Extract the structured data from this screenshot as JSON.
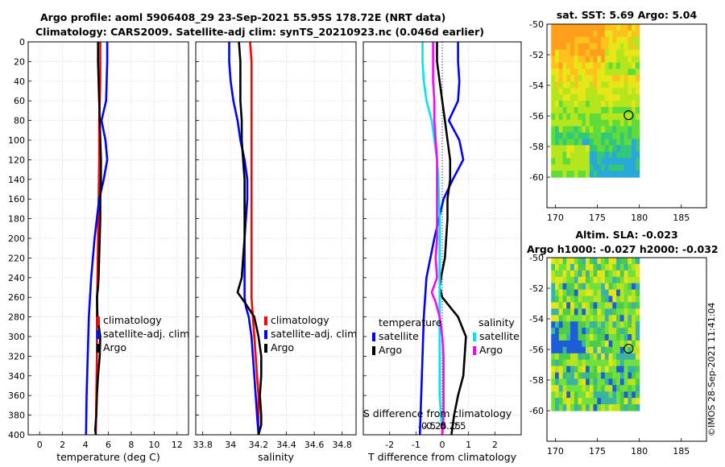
{
  "header": {
    "line1": "Argo profile: aoml 5906408_29 23-Sep-2021 55.95S 178.72E (NRT data)",
    "line2": "Climatology: CARS2009. Satellite-adj clim: synTS_20210923.nc (0.046d earlier)"
  },
  "credit": "©IMOS 28-Sep-2021 11:41:04",
  "colors": {
    "argo": "#000000",
    "climatology": "#ff0000",
    "satellite_clim": "#0000ff",
    "salinity_satellite": "#00e5ee",
    "salinity_argo": "#ff00ff"
  },
  "chart_data": [
    {
      "id": "temperature_panel",
      "type": "line",
      "xlabel": "temperature (deg C)",
      "xlim": [
        -1,
        13
      ],
      "xticks": [
        0,
        2,
        4,
        6,
        8,
        10,
        12
      ],
      "ylim": [
        0,
        400
      ],
      "yticks": [
        0,
        20,
        40,
        60,
        80,
        100,
        120,
        140,
        160,
        180,
        200,
        220,
        240,
        260,
        280,
        300,
        320,
        340,
        360,
        380,
        400
      ],
      "legend": {
        "placement": "center-right",
        "entries": [
          "climatology",
          "satellite-adj. clim",
          "Argo"
        ]
      },
      "series": [
        {
          "name": "climatology",
          "x": [
            5.3,
            5.3,
            5.2,
            5.2,
            5.15,
            5.1,
            5.05,
            5.0,
            5.0,
            4.95,
            4.9
          ],
          "y": [
            0,
            40,
            80,
            120,
            160,
            200,
            240,
            280,
            320,
            360,
            400
          ]
        },
        {
          "name": "satellite-adj. clim",
          "x": [
            5.9,
            5.9,
            5.85,
            5.8,
            5.4,
            5.75,
            5.9,
            5.6,
            5.2,
            4.8,
            4.5,
            4.3,
            4.2,
            4.1,
            4.05
          ],
          "y": [
            0,
            20,
            40,
            60,
            80,
            100,
            120,
            140,
            160,
            200,
            240,
            280,
            320,
            360,
            400
          ]
        },
        {
          "name": "Argo",
          "x": [
            5.1,
            5.1,
            5.15,
            5.2,
            5.25,
            5.3,
            5.35,
            5.35,
            5.3,
            5.3,
            5.25,
            5.2,
            5.15,
            5.1,
            5.0,
            5.05,
            5.3,
            5.25,
            5.1,
            5.0,
            4.95,
            4.85,
            4.9
          ],
          "y": [
            0,
            20,
            40,
            60,
            80,
            100,
            120,
            140,
            160,
            180,
            200,
            220,
            240,
            250,
            260,
            280,
            300,
            320,
            340,
            360,
            380,
            395,
            400
          ]
        }
      ]
    },
    {
      "id": "salinity_panel",
      "type": "line",
      "xlabel": "salinity",
      "xlim": [
        33.75,
        34.9
      ],
      "xticks": [
        33.8,
        34,
        34.2,
        34.4,
        34.6,
        34.8
      ],
      "ylim": [
        0,
        400
      ],
      "legend": {
        "placement": "center-right",
        "entries": [
          "climatology",
          "satellite-adj. clim",
          "Argo"
        ]
      },
      "series": [
        {
          "name": "climatology",
          "x": [
            34.14,
            34.15,
            34.15,
            34.15,
            34.15,
            34.15,
            34.15,
            34.15,
            34.15,
            34.16,
            34.17,
            34.18,
            34.19,
            34.2,
            34.2,
            34.2
          ],
          "y": [
            0,
            20,
            60,
            100,
            140,
            180,
            220,
            240,
            260,
            280,
            300,
            320,
            340,
            360,
            380,
            400
          ]
        },
        {
          "name": "satellite-adj. clim",
          "x": [
            33.99,
            33.99,
            34.0,
            34.02,
            34.05,
            34.07,
            34.1,
            34.12,
            34.12,
            34.11,
            34.1,
            34.1,
            34.1,
            34.1,
            34.11,
            34.13,
            34.15,
            34.16,
            34.17,
            34.18,
            34.19,
            34.2
          ],
          "y": [
            0,
            20,
            40,
            60,
            80,
            100,
            120,
            140,
            160,
            180,
            200,
            220,
            240,
            260,
            270,
            280,
            300,
            320,
            340,
            360,
            380,
            400
          ]
        },
        {
          "name": "Argo",
          "x": [
            34.06,
            34.07,
            34.07,
            34.07,
            34.08,
            34.08,
            34.09,
            34.1,
            34.1,
            34.1,
            34.1,
            34.09,
            34.08,
            34.05,
            34.1,
            34.17,
            34.2,
            34.22,
            34.22,
            34.21,
            34.22,
            34.22,
            34.2
          ],
          "y": [
            0,
            20,
            40,
            60,
            80,
            100,
            120,
            140,
            160,
            180,
            200,
            220,
            240,
            255,
            265,
            280,
            300,
            320,
            340,
            360,
            380,
            390,
            400
          ]
        }
      ]
    },
    {
      "id": "difference_panel",
      "type": "line",
      "xlabel": "T difference from climatology",
      "xlim": [
        -3,
        3
      ],
      "xticks": [
        -2,
        -1,
        0,
        1,
        2
      ],
      "ylim": [
        0,
        400
      ],
      "top_axis": {
        "label": "S difference from climatology",
        "ticks": [
          "-0.5",
          "-0.25",
          "0",
          "0.25",
          "0.5"
        ]
      },
      "legend_left": {
        "title": "temperature",
        "entries": [
          "satellite",
          "Argo"
        ]
      },
      "legend_right": {
        "title": "salinity",
        "entries": [
          "satellite",
          "Argo"
        ]
      },
      "series": [
        {
          "name": "temperature satellite",
          "x": [
            0.6,
            0.6,
            0.65,
            0.6,
            0.25,
            0.65,
            0.8,
            0.4,
            0.05,
            -0.3,
            -0.6,
            -0.7,
            -0.75,
            -0.8,
            -0.85
          ],
          "y": [
            0,
            20,
            40,
            60,
            80,
            100,
            120,
            140,
            160,
            200,
            240,
            280,
            320,
            360,
            400
          ]
        },
        {
          "name": "temperature Argo",
          "x": [
            -0.2,
            -0.2,
            -0.1,
            0.0,
            0.1,
            0.2,
            0.3,
            0.3,
            0.2,
            0.2,
            0.15,
            0.1,
            -0.05,
            -0.1,
            0.0,
            0.6,
            0.9,
            0.85,
            0.8,
            0.6,
            0.45,
            0.35
          ],
          "y": [
            0,
            20,
            40,
            60,
            80,
            100,
            120,
            140,
            160,
            180,
            200,
            220,
            240,
            250,
            260,
            280,
            300,
            320,
            340,
            360,
            380,
            400
          ]
        },
        {
          "name": "salinity satellite",
          "x": [
            -0.75,
            -0.75,
            -0.7,
            -0.6,
            -0.4,
            -0.3,
            -0.2,
            -0.15,
            -0.1,
            -0.1,
            -0.1,
            -0.1,
            -0.1,
            -0.1,
            -0.1,
            -0.1,
            -0.05,
            0.0
          ],
          "y": [
            0,
            20,
            40,
            60,
            80,
            100,
            120,
            140,
            180,
            220,
            260,
            280,
            300,
            320,
            340,
            360,
            380,
            400
          ]
        },
        {
          "name": "salinity Argo",
          "x": [
            -0.35,
            -0.35,
            -0.35,
            -0.3,
            -0.3,
            -0.25,
            -0.2,
            -0.2,
            -0.2,
            -0.2,
            -0.25,
            -0.2,
            -0.4,
            -0.25,
            -0.1,
            0.0,
            0.05,
            0.05,
            0.05,
            0.0
          ],
          "y": [
            0,
            20,
            40,
            60,
            80,
            100,
            120,
            140,
            160,
            200,
            220,
            240,
            255,
            265,
            280,
            300,
            320,
            340,
            380,
            400
          ]
        }
      ]
    },
    {
      "id": "sst_map",
      "type": "heatmap",
      "title": "sat. SST: 5.69 Argo: 5.04",
      "xlim": [
        169,
        188
      ],
      "ylim": [
        -50,
        -62
      ],
      "xticks": [
        170,
        175,
        180,
        185
      ],
      "yticks": [
        -50,
        -52,
        -54,
        -56,
        -58,
        -60
      ],
      "marker": {
        "lon": 178.72,
        "lat": -55.95
      },
      "extent": {
        "lon": [
          169.5,
          180
        ],
        "lat": [
          -50,
          -60
        ]
      }
    },
    {
      "id": "sla_map",
      "type": "heatmap",
      "title": "Altim. SLA: -0.023",
      "subtitle": "Argo h1000: -0.027 h2000: -0.032",
      "xlim": [
        169,
        188
      ],
      "ylim": [
        -50,
        -62
      ],
      "xticks": [
        170,
        175,
        180,
        185
      ],
      "yticks": [
        -50,
        -52,
        -54,
        -56,
        -58,
        -60
      ],
      "marker": {
        "lon": 178.72,
        "lat": -55.95
      },
      "extent": {
        "lon": [
          169.5,
          180
        ],
        "lat": [
          -50,
          -60
        ]
      }
    }
  ]
}
